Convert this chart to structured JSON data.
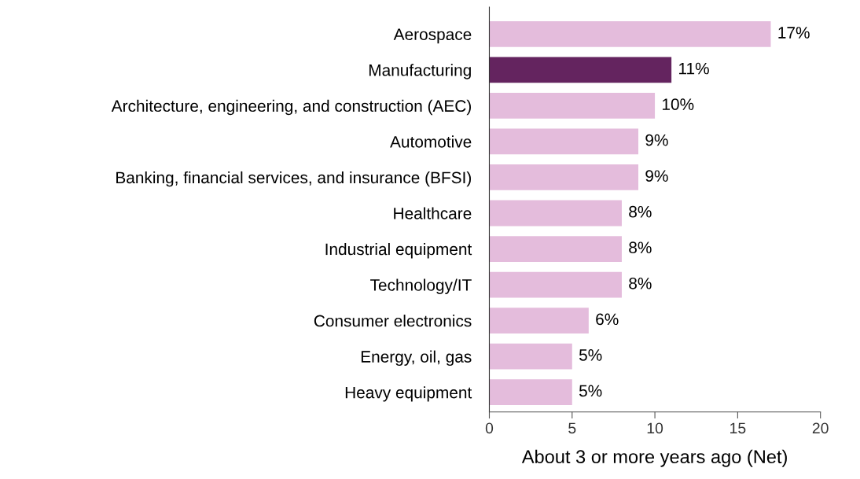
{
  "chart_data": {
    "type": "bar",
    "orientation": "horizontal",
    "xlabel": "About 3 or more years ago (Net)",
    "categories": [
      "Aerospace",
      "Manufacturing",
      "Architecture, engineering, and construction (AEC)",
      "Automotive",
      "Banking, financial services, and insurance (BFSI)",
      "Healthcare",
      "Industrial equipment",
      "Technology/IT",
      "Consumer electronics",
      "Energy, oil, gas",
      "Heavy equipment"
    ],
    "values": [
      17,
      11,
      10,
      9,
      9,
      8,
      8,
      8,
      6,
      5,
      5
    ],
    "value_labels": [
      "17%",
      "11%",
      "10%",
      "9%",
      "9%",
      "8%",
      "8%",
      "8%",
      "6%",
      "5%",
      "5%"
    ],
    "colors": [
      "#e4bcdc",
      "#64245f",
      "#e4bcdc",
      "#e4bcdc",
      "#e4bcdc",
      "#e4bcdc",
      "#e4bcdc",
      "#e4bcdc",
      "#e4bcdc",
      "#e4bcdc",
      "#e4bcdc"
    ],
    "xlim": [
      0,
      20
    ],
    "xticks": [
      0,
      5,
      10,
      15,
      20
    ],
    "grid": false,
    "legend": false
  }
}
